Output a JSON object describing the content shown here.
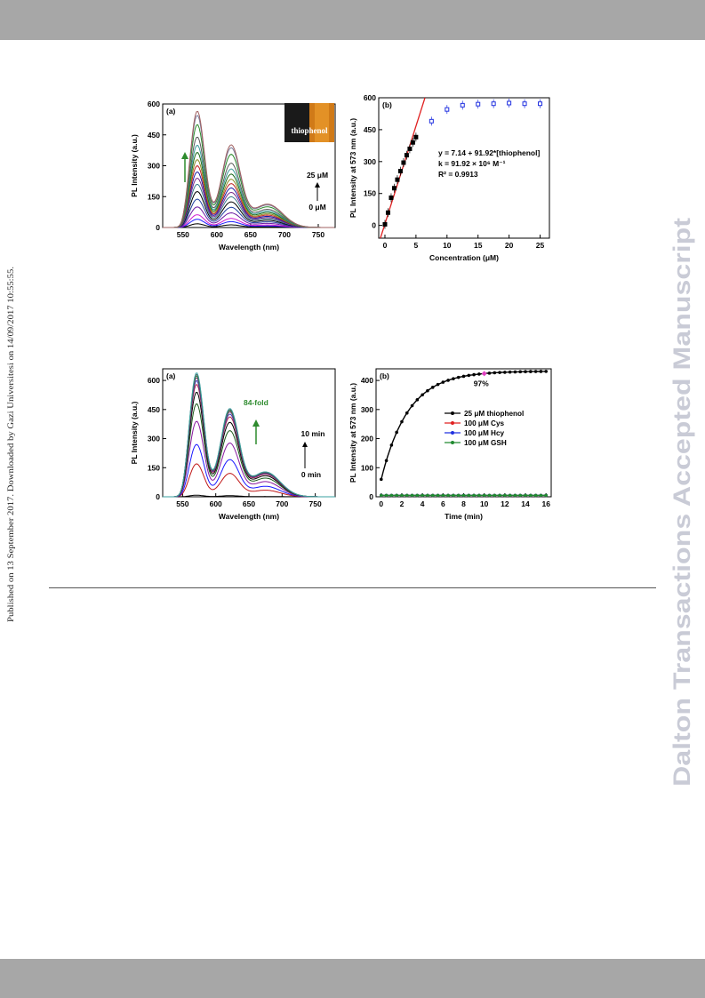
{
  "watermark": "Dalton Transactions Accepted Manuscript",
  "side_note": "Published on 13 September 2017. Downloaded by Gazi Universitesi on 14/09/2017 10:55:55.",
  "colors": {
    "bar": "#a7a7a7",
    "watermark": "#c9cbd6",
    "fit_line": "#e02020",
    "arrow": "#2e8b2e"
  },
  "chart_data": [
    {
      "type": "line",
      "panel_label": "(a)",
      "xlabel": "Wavelength (nm)",
      "ylabel": "PL Intensity (a.u.)",
      "xlim": [
        520,
        775
      ],
      "ylim": [
        0,
        600
      ],
      "xticks": [
        550,
        600,
        650,
        700,
        750
      ],
      "yticks": [
        0,
        150,
        300,
        450,
        600
      ],
      "inset_label": "thiophenol",
      "annotation_top": "25 μM",
      "annotation_bottom": "0 μM",
      "peak_values": [
        18,
        40,
        62,
        100,
        138,
        175,
        210,
        240,
        270,
        300,
        330,
        365,
        400,
        440,
        500,
        545,
        565
      ],
      "series_colors": [
        "#000000",
        "#1a1aff",
        "#d01ad0",
        "#6b1aa0",
        "#1f3f9f",
        "#000000",
        "#3a7a8c",
        "#7a2a8a",
        "#1a1aa0",
        "#c02020",
        "#8a8a20",
        "#1a6a1a",
        "#3a9a9a",
        "#5a5a5a",
        "#2a8a2a",
        "#7a7a9a",
        "#a06060"
      ]
    },
    {
      "type": "scatter",
      "panel_label": "(b)",
      "xlabel": "Concentration (μM)",
      "ylabel": "PL Intensity at 573 nm (a.u.)",
      "xlim": [
        -1,
        26.5
      ],
      "ylim": [
        -60,
        600
      ],
      "xticks": [
        0,
        5,
        10,
        15,
        20,
        25
      ],
      "yticks": [
        0,
        150,
        300,
        450,
        600
      ],
      "fit_equation": "y = 7.14 + 91.92*[thiophenol]",
      "fit_k": "k = 91.92 × 10⁶ M⁻¹",
      "fit_r2": "R² = 0.9913",
      "x": [
        0,
        0.5,
        1,
        1.5,
        2,
        2.5,
        3,
        3.5,
        4,
        4.5,
        5,
        7.5,
        10,
        12.5,
        15,
        17.5,
        20,
        22.5,
        25
      ],
      "y": [
        5,
        60,
        130,
        175,
        215,
        255,
        295,
        330,
        360,
        390,
        415,
        490,
        545,
        565,
        570,
        572,
        575,
        572,
        572
      ],
      "fit_intercept": 7.14,
      "fit_slope": 91.92
    },
    {
      "type": "line",
      "panel_label": "(a)",
      "xlabel": "Wavelength (nm)",
      "ylabel": "PL Intensity (a.u.)",
      "xlim": [
        520,
        780
      ],
      "ylim": [
        0,
        660
      ],
      "xticks": [
        550,
        600,
        650,
        700,
        750
      ],
      "yticks": [
        0,
        150,
        300,
        450,
        600
      ],
      "fold_label": "84-fold",
      "annotation_top": "10 min",
      "annotation_bottom": "0 min",
      "peak_values": [
        8,
        170,
        270,
        390,
        480,
        540,
        580,
        600,
        615,
        625,
        632,
        640
      ],
      "series_colors": [
        "#000000",
        "#c01818",
        "#1a1aff",
        "#8a1aa0",
        "#1a5a1a",
        "#000000",
        "#b0204a",
        "#3a3ab0",
        "#7a3a7a",
        "#2a7a2a",
        "#555555",
        "#3aa0a0"
      ]
    },
    {
      "type": "line",
      "panel_label": "(b)",
      "xlabel": "Time (min)",
      "ylabel": "PL Intensity at 573 nm (a.u.)",
      "xlim": [
        -0.5,
        16.5
      ],
      "ylim": [
        0,
        440
      ],
      "xticks": [
        0,
        2,
        4,
        6,
        8,
        10,
        12,
        14,
        16
      ],
      "yticks": [
        0,
        100,
        200,
        300,
        400
      ],
      "annotation": "97%",
      "series": [
        {
          "name": "25 μM thiophenol",
          "color": "#000000",
          "plateau": 432,
          "rate": 0.38
        },
        {
          "name": "100 μM Cys",
          "color": "#e02020",
          "value": 5
        },
        {
          "name": "100 μM Hcy",
          "color": "#2030e0",
          "value": 5
        },
        {
          "name": "100 μM GSH",
          "color": "#208a30",
          "value": 5
        }
      ],
      "x_points": [
        0,
        0.5,
        1,
        1.5,
        2,
        2.5,
        3,
        3.5,
        4,
        4.5,
        5,
        5.5,
        6,
        6.5,
        7,
        7.5,
        8,
        8.5,
        9,
        9.5,
        10,
        10.5,
        11,
        11.5,
        12,
        12.5,
        13,
        13.5,
        14,
        14.5,
        15,
        15.5,
        16
      ]
    }
  ]
}
